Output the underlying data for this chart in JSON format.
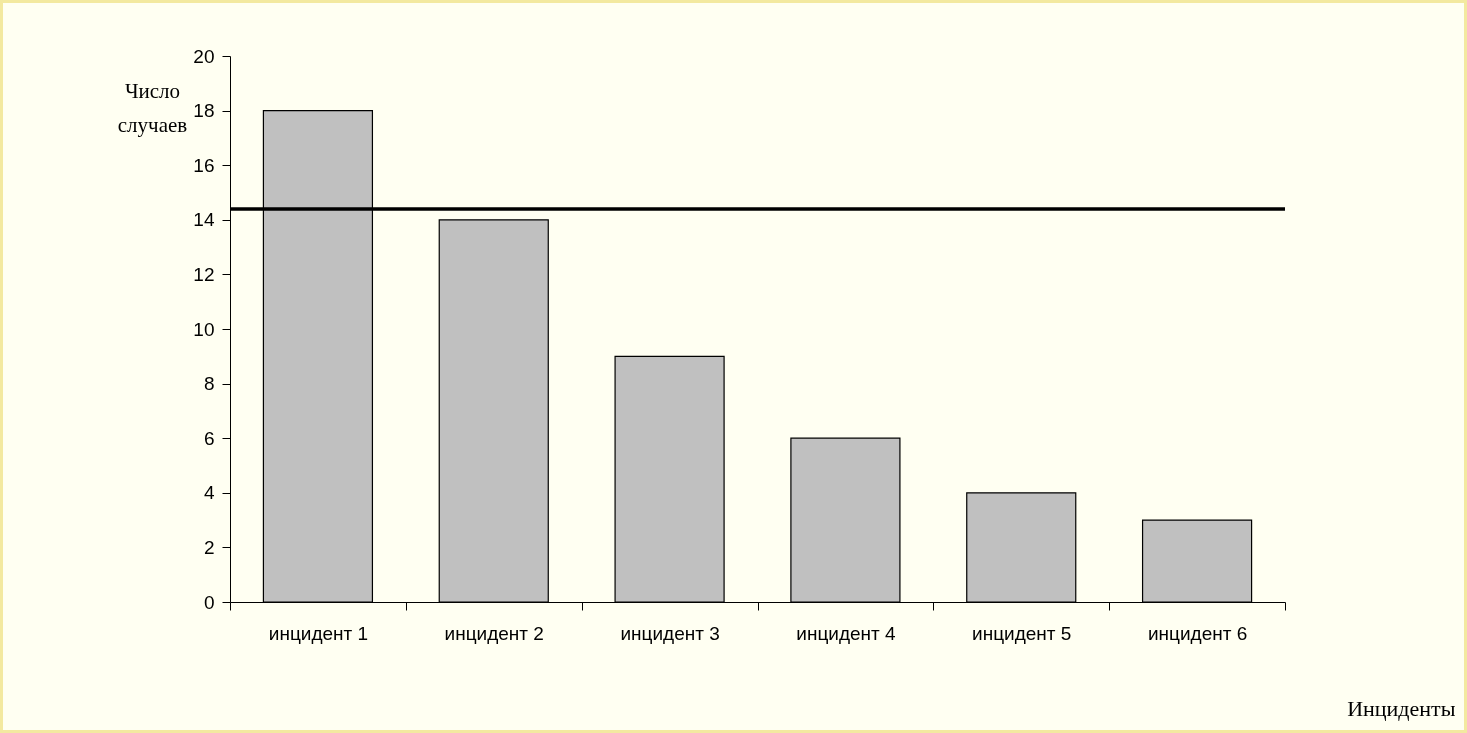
{
  "chart_data": {
    "type": "bar",
    "xlabel": "Инциденты",
    "ylabel": "Число случаев",
    "categories": [
      "инцидент 1",
      "инцидент 2",
      "инцидент 3",
      "инцидент 4",
      "инцидент 5",
      "инцидент 6"
    ],
    "values": [
      18,
      14,
      9,
      6,
      4,
      3
    ],
    "color": "#c0c0c0",
    "ylim": [
      0,
      20
    ],
    "yticks": [
      0,
      2,
      4,
      6,
      8,
      10,
      12,
      14,
      16,
      18,
      20
    ],
    "grid": false,
    "ref_lines": [
      {
        "axis": "y",
        "value": 14.4,
        "color": "#000000"
      }
    ]
  }
}
